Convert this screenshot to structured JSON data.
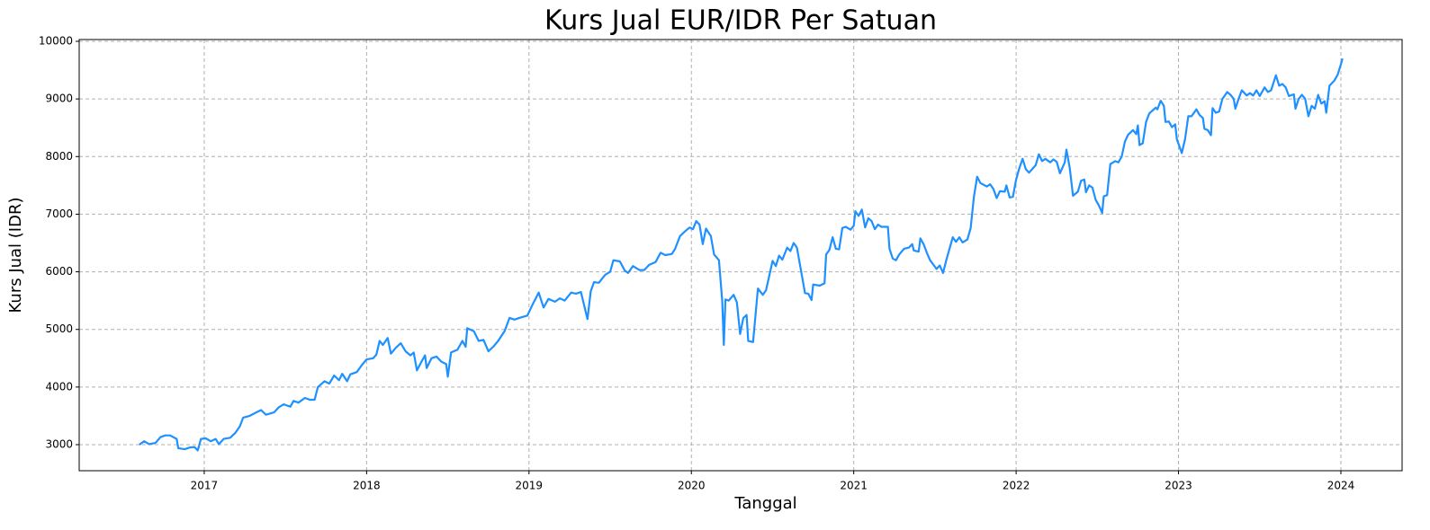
{
  "chart_data": {
    "type": "line",
    "title": "Kurs Jual EUR/IDR Per Satuan",
    "x_label": "Tanggal",
    "y_label": "Kurs Jual (IDR)",
    "color": "#1e90ff",
    "grid": true,
    "x": [
      2016.6,
      2016.63,
      2016.66,
      2016.7,
      2016.73,
      2016.76,
      2016.79,
      2016.83,
      2016.84,
      2016.88,
      2016.91,
      2016.94,
      2016.96,
      2016.98,
      2017.01,
      2017.04,
      2017.07,
      2017.09,
      2017.12,
      2017.16,
      2017.19,
      2017.22,
      2017.24,
      2017.28,
      2017.32,
      2017.35,
      2017.38,
      2017.43,
      2017.46,
      2017.49,
      2017.53,
      2017.55,
      2017.58,
      2017.62,
      2017.65,
      2017.68,
      2017.7,
      2017.74,
      2017.77,
      2017.8,
      2017.83,
      2017.85,
      2017.88,
      2017.9,
      2017.94,
      2017.97,
      2018.0,
      2018.04,
      2018.06,
      2018.08,
      2018.1,
      2018.13,
      2018.15,
      2018.18,
      2018.21,
      2018.24,
      2018.27,
      2018.29,
      2018.31,
      2018.34,
      2018.36,
      2018.37,
      2018.4,
      2018.43,
      2018.46,
      2018.49,
      2018.5,
      2018.52,
      2018.56,
      2018.59,
      2018.61,
      2018.62,
      2018.66,
      2018.69,
      2018.72,
      2018.75,
      2018.78,
      2018.81,
      2018.85,
      2018.88,
      2018.91,
      2018.94,
      2018.99,
      2019.02,
      2019.06,
      2019.09,
      2019.12,
      2019.16,
      2019.19,
      2019.22,
      2019.26,
      2019.29,
      2019.32,
      2019.36,
      2019.38,
      2019.4,
      2019.43,
      2019.47,
      2019.5,
      2019.52,
      2019.56,
      2019.59,
      2019.61,
      2019.64,
      2019.68,
      2019.71,
      2019.74,
      2019.78,
      2019.81,
      2019.84,
      2019.88,
      2019.9,
      2019.93,
      2019.96,
      2019.99,
      2020.01,
      2020.03,
      2020.05,
      2020.07,
      2020.09,
      2020.12,
      2020.14,
      2020.17,
      2020.19,
      2020.2,
      2020.21,
      2020.23,
      2020.26,
      2020.28,
      2020.3,
      2020.32,
      2020.34,
      2020.35,
      2020.38,
      2020.41,
      2020.44,
      2020.46,
      2020.5,
      2020.52,
      2020.54,
      2020.56,
      2020.59,
      2020.61,
      2020.63,
      2020.65,
      2020.68,
      2020.7,
      2020.72,
      2020.74,
      2020.75,
      2020.79,
      2020.82,
      2020.83,
      2020.85,
      2020.87,
      2020.89,
      2020.91,
      2020.93,
      2020.95,
      2020.98,
      2021.0,
      2021.01,
      2021.03,
      2021.05,
      2021.07,
      2021.09,
      2021.11,
      2021.13,
      2021.15,
      2021.17,
      2021.21,
      2021.22,
      2021.24,
      2021.26,
      2021.28,
      2021.31,
      2021.34,
      2021.36,
      2021.37,
      2021.4,
      2021.41,
      2021.43,
      2021.45,
      2021.47,
      2021.51,
      2021.53,
      2021.55,
      2021.57,
      2021.61,
      2021.63,
      2021.65,
      2021.67,
      2021.7,
      2021.72,
      2021.74,
      2021.76,
      2021.78,
      2021.82,
      2021.84,
      2021.86,
      2021.88,
      2021.9,
      2021.93,
      2021.94,
      2021.96,
      2021.98,
      2022.0,
      2022.02,
      2022.04,
      2022.06,
      2022.08,
      2022.12,
      2022.14,
      2022.16,
      2022.18,
      2022.21,
      2022.23,
      2022.25,
      2022.27,
      2022.3,
      2022.31,
      2022.33,
      2022.35,
      2022.38,
      2022.4,
      2022.42,
      2022.43,
      2022.45,
      2022.47,
      2022.49,
      2022.51,
      2022.53,
      2022.54,
      2022.56,
      2022.58,
      2022.61,
      2022.63,
      2022.65,
      2022.67,
      2022.69,
      2022.72,
      2022.74,
      2022.75,
      2022.76,
      2022.78,
      2022.8,
      2022.82,
      2022.84,
      2022.86,
      2022.87,
      2022.89,
      2022.91,
      2022.92,
      2022.94,
      2022.96,
      2022.98,
      2022.99,
      2023.02,
      2023.04,
      2023.06,
      2023.08,
      2023.11,
      2023.13,
      2023.15,
      2023.16,
      2023.18,
      2023.2,
      2023.21,
      2023.23,
      2023.25,
      2023.27,
      2023.3,
      2023.32,
      2023.34,
      2023.35,
      2023.37,
      2023.39,
      2023.42,
      2023.44,
      2023.46,
      2023.48,
      2023.5,
      2023.53,
      2023.55,
      2023.57,
      2023.6,
      2023.62,
      2023.64,
      2023.66,
      2023.68,
      2023.71,
      2023.72,
      2023.74,
      2023.76,
      2023.78,
      2023.8,
      2023.82,
      2023.84,
      2023.86,
      2023.88,
      2023.9,
      2023.91,
      2023.93,
      2023.96,
      2023.98,
      2024.0,
      2024.01
    ],
    "values": [
      3000,
      3060,
      3010,
      3030,
      3130,
      3160,
      3160,
      3100,
      2940,
      2920,
      2950,
      2960,
      2900,
      3100,
      3110,
      3060,
      3100,
      3010,
      3100,
      3120,
      3200,
      3320,
      3470,
      3500,
      3560,
      3600,
      3520,
      3560,
      3650,
      3700,
      3660,
      3760,
      3730,
      3810,
      3780,
      3780,
      4000,
      4100,
      4060,
      4200,
      4120,
      4230,
      4100,
      4220,
      4260,
      4380,
      4480,
      4500,
      4560,
      4800,
      4730,
      4850,
      4580,
      4680,
      4760,
      4620,
      4550,
      4600,
      4290,
      4450,
      4550,
      4330,
      4500,
      4530,
      4440,
      4400,
      4180,
      4600,
      4650,
      4800,
      4700,
      5020,
      4970,
      4800,
      4820,
      4620,
      4700,
      4800,
      4970,
      5200,
      5170,
      5200,
      5240,
      5420,
      5640,
      5380,
      5530,
      5480,
      5540,
      5500,
      5640,
      5620,
      5650,
      5180,
      5660,
      5820,
      5810,
      5950,
      6000,
      6200,
      6180,
      6020,
      5980,
      6100,
      6030,
      6030,
      6120,
      6170,
      6330,
      6290,
      6310,
      6400,
      6620,
      6700,
      6770,
      6740,
      6880,
      6820,
      6480,
      6750,
      6620,
      6300,
      6200,
      5500,
      4730,
      5520,
      5500,
      5600,
      5470,
      4920,
      5200,
      5250,
      4800,
      4780,
      5710,
      5600,
      5680,
      6190,
      6100,
      6280,
      6210,
      6420,
      6360,
      6500,
      6420,
      5950,
      5630,
      5620,
      5510,
      5780,
      5760,
      5800,
      6300,
      6380,
      6600,
      6400,
      6390,
      6760,
      6780,
      6730,
      6800,
      7050,
      6970,
      7080,
      6770,
      6930,
      6880,
      6740,
      6820,
      6780,
      6780,
      6400,
      6230,
      6200,
      6300,
      6400,
      6420,
      6480,
      6370,
      6350,
      6580,
      6480,
      6330,
      6200,
      6050,
      6110,
      5980,
      6200,
      6600,
      6520,
      6600,
      6510,
      6560,
      6760,
      7300,
      7650,
      7540,
      7480,
      7520,
      7440,
      7280,
      7400,
      7390,
      7500,
      7290,
      7300,
      7600,
      7800,
      7960,
      7780,
      7720,
      7850,
      8040,
      7920,
      7960,
      7900,
      7950,
      7910,
      7710,
      7900,
      8120,
      7800,
      7320,
      7390,
      7580,
      7600,
      7380,
      7500,
      7460,
      7250,
      7150,
      7020,
      7310,
      7330,
      7870,
      7920,
      7900,
      8000,
      8260,
      8380,
      8460,
      8390,
      8540,
      8200,
      8230,
      8600,
      8750,
      8800,
      8850,
      8820,
      8970,
      8880,
      8600,
      8610,
      8510,
      8560,
      8300,
      8060,
      8300,
      8700,
      8700,
      8820,
      8720,
      8670,
      8480,
      8460,
      8370,
      8840,
      8760,
      8780,
      9000,
      9120,
      9070,
      9000,
      8830,
      9000,
      9150,
      9060,
      9100,
      9060,
      9150,
      9050,
      9200,
      9120,
      9150,
      9410,
      9230,
      9260,
      9200,
      9050,
      9080,
      8830,
      9000,
      9070,
      9000,
      8700,
      8880,
      8830,
      9070,
      8920,
      8960,
      8760,
      9230,
      9320,
      9420,
      9600,
      9700
    ],
    "xlim": [
      2016.23,
      2024.377
    ],
    "xticks": [
      2017,
      2018,
      2019,
      2020,
      2021,
      2022,
      2023,
      2024
    ],
    "ylim": [
      2548,
      10031
    ],
    "yticks": [
      3000,
      4000,
      5000,
      6000,
      7000,
      8000,
      9000,
      10000
    ]
  }
}
